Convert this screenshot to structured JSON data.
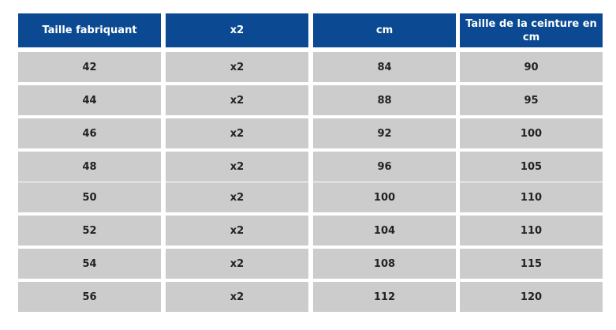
{
  "table": {
    "header": [
      "Taille fabriquant",
      "x2",
      "cm",
      "Taille de la ceinture en cm"
    ],
    "rows": [
      [
        "42",
        "x2",
        "84",
        "90"
      ],
      [
        "44",
        "x2",
        "88",
        "95"
      ],
      [
        "46",
        "x2",
        "92",
        "100"
      ],
      [
        "48",
        "x2",
        "96",
        "105"
      ],
      [
        "50",
        "x2",
        "100",
        "110"
      ],
      [
        "52",
        "x2",
        "104",
        "110"
      ],
      [
        "54",
        "x2",
        "108",
        "115"
      ],
      [
        "56",
        "x2",
        "112",
        "120"
      ]
    ]
  }
}
